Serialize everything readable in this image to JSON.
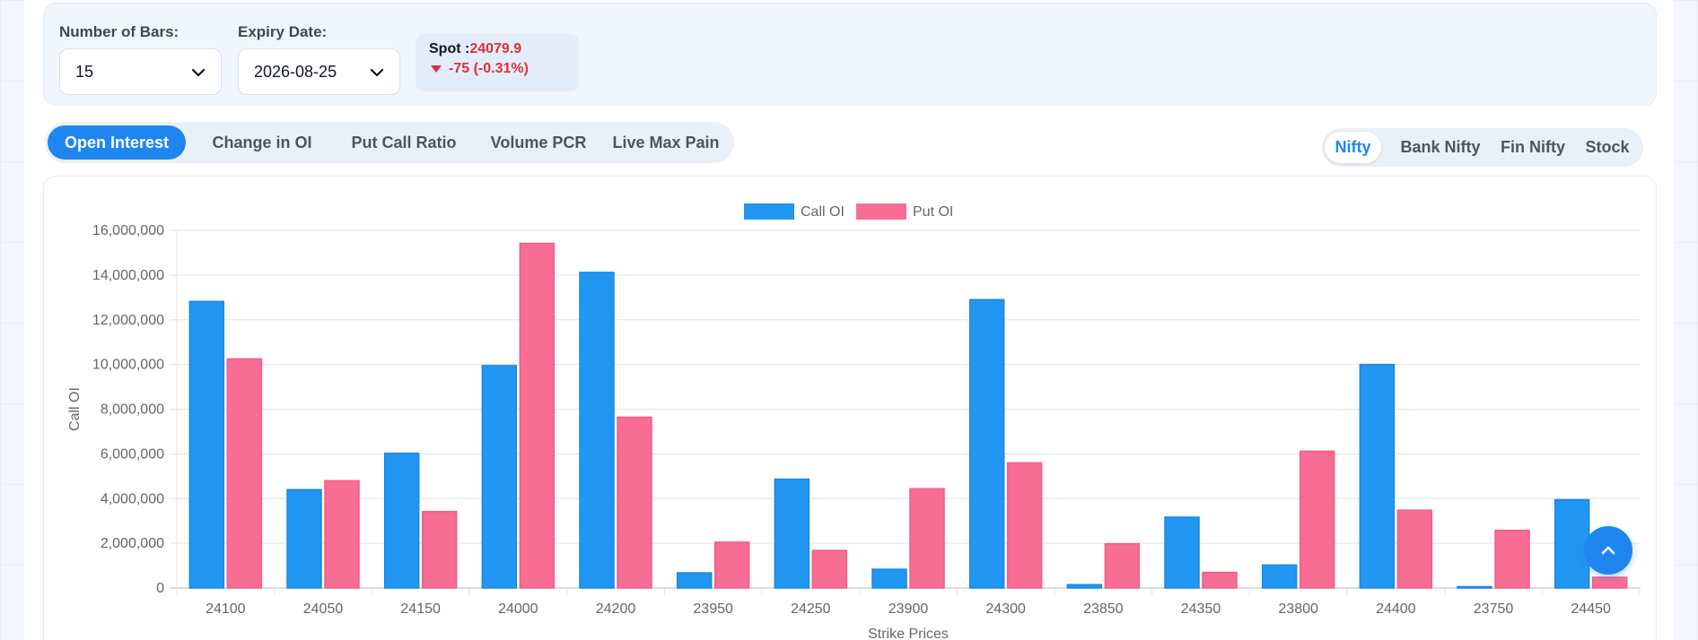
{
  "controls": {
    "bars_label": "Number of Bars:",
    "bars_value": "15",
    "expiry_label": "Expiry Date:",
    "expiry_value": "2026-08-25",
    "spot_label": "Spot :",
    "spot_value": "24079.9",
    "spot_change": "-75 (-0.31%)"
  },
  "tabs": [
    {
      "label": "Open Interest",
      "active": true
    },
    {
      "label": "Change in OI",
      "active": false
    },
    {
      "label": "Put Call Ratio",
      "active": false
    },
    {
      "label": "Volume PCR",
      "active": false
    },
    {
      "label": "Live Max Pain",
      "active": false
    }
  ],
  "index_tabs": [
    {
      "label": "Nifty",
      "active": true
    },
    {
      "label": "Bank Nifty",
      "active": false
    },
    {
      "label": "Fin Nifty",
      "active": false
    },
    {
      "label": "Stock",
      "active": false
    }
  ],
  "colors": {
    "accent": "#1f86ef",
    "call": "#2196f3",
    "put": "#f76d93",
    "negative": "#e0303a"
  },
  "chart_data": {
    "type": "bar",
    "categories": [
      "24100",
      "24050",
      "24150",
      "24000",
      "24200",
      "23950",
      "24250",
      "23900",
      "24300",
      "23850",
      "24350",
      "23800",
      "24400",
      "23750",
      "24450"
    ],
    "series": [
      {
        "name": "Call OI",
        "values": [
          12820000,
          4400000,
          6030000,
          9950000,
          14120000,
          680000,
          4870000,
          840000,
          12900000,
          150000,
          3170000,
          1030000,
          10000000,
          60000,
          3950000
        ]
      },
      {
        "name": "Put OI",
        "values": [
          10250000,
          4800000,
          3420000,
          15420000,
          7640000,
          2050000,
          1680000,
          4440000,
          5600000,
          1980000,
          700000,
          6120000,
          3480000,
          2580000,
          480000
        ]
      }
    ],
    "xlabel": "Strike Prices",
    "ylabel": "Call OI",
    "ylim": [
      0,
      16000000
    ],
    "yticks": [
      "0",
      "2,000,000",
      "4,000,000",
      "6,000,000",
      "8,000,000",
      "10,000,000",
      "12,000,000",
      "14,000,000",
      "16,000,000"
    ],
    "grid": true,
    "legend": "top-center"
  },
  "icons": {
    "select_chevron": "chevron-down-icon",
    "change_arrow": "triangle-down-icon",
    "scroll_top": "chevron-up-icon"
  }
}
